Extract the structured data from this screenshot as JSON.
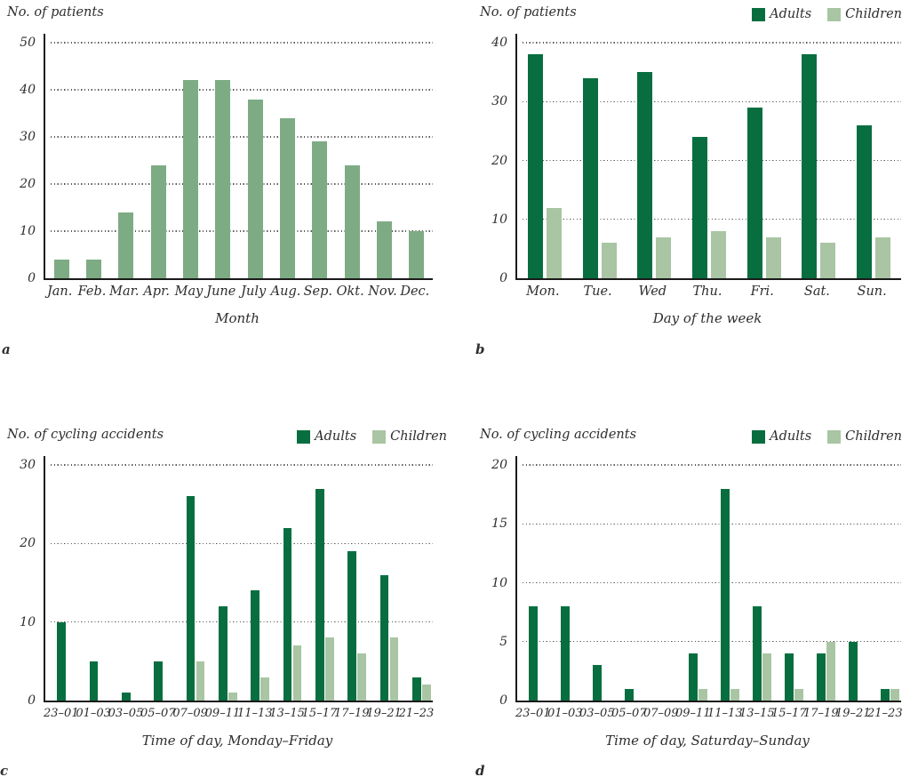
{
  "page": {
    "background": "#ffffff"
  },
  "colors": {
    "adults": "#086e40",
    "children": "#a9c5a3",
    "single": "#7dac84",
    "axis": "#1a1a1a",
    "grid": "#595959",
    "text": "#2e2e2e"
  },
  "chart_data": [
    {
      "id": "a",
      "type": "bar",
      "title": "No. of patients",
      "xlabel": "Month",
      "panel_label": "a",
      "ylim": [
        0,
        50
      ],
      "yticks": [
        0,
        10,
        20,
        30,
        40,
        50
      ],
      "grid": "dotted horizontal",
      "legend": false,
      "legend_position": "none",
      "categories": [
        "Jan.",
        "Feb.",
        "Mar.",
        "Apr.",
        "May",
        "June",
        "July",
        "Aug.",
        "Sep.",
        "Okt.",
        "Nov.",
        "Dec."
      ],
      "series": [
        {
          "name": "Patients",
          "color_key": "single",
          "values": [
            4,
            4,
            14,
            24,
            42,
            42,
            38,
            34,
            29,
            24,
            12,
            10
          ]
        }
      ]
    },
    {
      "id": "b",
      "type": "bar",
      "title": "No. of patients",
      "xlabel": "Day of the week",
      "panel_label": "b",
      "ylim": [
        0,
        40
      ],
      "yticks": [
        0,
        10,
        20,
        30,
        40
      ],
      "grid": "dotted horizontal",
      "legend": true,
      "legend_position": "top-right",
      "categories": [
        "Mon.",
        "Tue.",
        "Wed",
        "Thu.",
        "Fri.",
        "Sat.",
        "Sun."
      ],
      "series": [
        {
          "name": "Adults",
          "color_key": "adults",
          "values": [
            38,
            34,
            35,
            24,
            29,
            38,
            26
          ]
        },
        {
          "name": "Children",
          "color_key": "children",
          "values": [
            12,
            6,
            7,
            8,
            7,
            6,
            7
          ]
        }
      ]
    },
    {
      "id": "c",
      "type": "bar",
      "title": "No. of cycling accidents",
      "xlabel": "Time of day, Monday–Friday",
      "panel_label": "c",
      "ylim": [
        0,
        30
      ],
      "yticks": [
        0,
        10,
        20,
        30
      ],
      "grid": "dotted horizontal",
      "legend": true,
      "legend_position": "top-right",
      "categories": [
        "23–01",
        "01–03",
        "03–05",
        "05–07",
        "07–09",
        "09–11",
        "11–13",
        "13–15",
        "15–17",
        "17–19",
        "19–21",
        "21–23"
      ],
      "series": [
        {
          "name": "Adults",
          "color_key": "adults",
          "values": [
            10,
            5,
            1,
            5,
            26,
            12,
            14,
            22,
            27,
            19,
            16,
            3
          ]
        },
        {
          "name": "Children",
          "color_key": "children",
          "values": [
            0,
            0,
            0,
            0,
            5,
            1,
            3,
            7,
            8,
            6,
            8,
            2
          ]
        }
      ]
    },
    {
      "id": "d",
      "type": "bar",
      "title": "No. of cycling accidents",
      "xlabel": "Time of day, Saturday–Sunday",
      "panel_label": "d",
      "ylim": [
        0,
        20
      ],
      "yticks": [
        0,
        5,
        10,
        15,
        20
      ],
      "grid": "dotted horizontal",
      "legend": true,
      "legend_position": "top-right",
      "categories": [
        "23–01",
        "01–03",
        "03–05",
        "05–07",
        "07–09",
        "09–11",
        "11–13",
        "13–15",
        "15–17",
        "17–19",
        "19–21",
        "21–23"
      ],
      "series": [
        {
          "name": "Adults",
          "color_key": "adults",
          "values": [
            8,
            8,
            3,
            1,
            0,
            4,
            18,
            8,
            4,
            4,
            5,
            1
          ]
        },
        {
          "name": "Children",
          "color_key": "children",
          "values": [
            0,
            0,
            0,
            0,
            0,
            1,
            1,
            4,
            1,
            5,
            0,
            1
          ]
        }
      ]
    }
  ]
}
